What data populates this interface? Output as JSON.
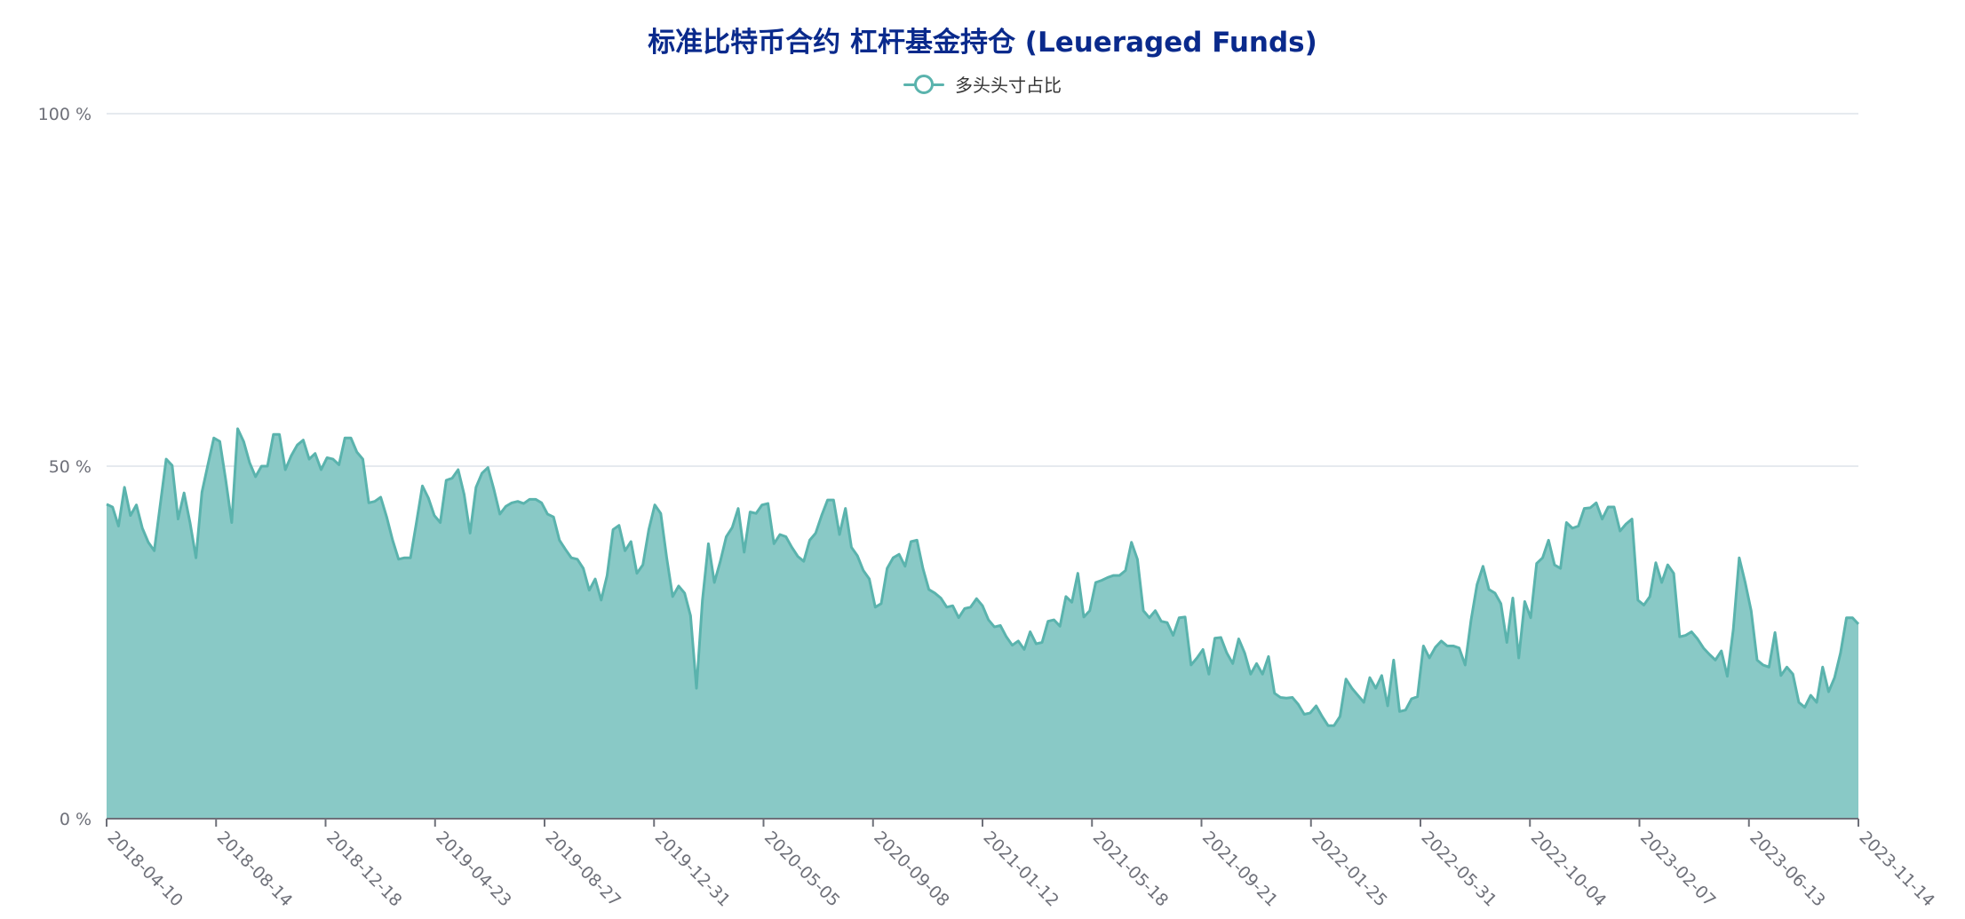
{
  "chart_data": {
    "type": "area",
    "title": "标准比特币合约 杠杆基金持仓 (Leueraged Funds)",
    "xlabel": "",
    "ylabel": "",
    "ylim": [
      0,
      100
    ],
    "y_tick_labels": [
      "0 %",
      "50 %",
      "100 %"
    ],
    "x_tick_labels": [
      "2018-04-10",
      "2018-08-14",
      "2018-12-18",
      "2019-04-23",
      "2019-08-27",
      "2019-12-31",
      "2020-05-05",
      "2020-09-08",
      "2021-01-12",
      "2021-05-18",
      "2021-09-21",
      "2022-01-25",
      "2022-05-31",
      "2022-10-04",
      "2023-02-07",
      "2023-06-13",
      "2023-11-14"
    ],
    "grid": true,
    "legend_position": "top-center",
    "colors": {
      "series": "#5ab3ad",
      "area": "#89c9c6",
      "title": "#0a2a8c"
    },
    "series": [
      {
        "name": "多头头寸占比",
        "values": [
          44.6,
          44.2,
          41.5,
          47,
          43,
          44.5,
          41.2,
          39.2,
          38,
          44.5,
          51,
          50.1,
          42.5,
          46.2,
          42,
          37,
          46.3,
          50.2,
          54,
          53.5,
          48,
          42,
          55.3,
          53.5,
          50.5,
          48.5,
          50,
          50,
          54.5,
          54.5,
          49.5,
          51.5,
          53,
          53.7,
          51,
          51.8,
          49.5,
          51.2,
          51,
          50.2,
          54,
          54,
          52,
          51,
          44.8,
          45,
          45.6,
          42.8,
          39.5,
          36.8,
          37,
          37,
          42,
          47.2,
          45.5,
          43,
          42,
          48,
          48.3,
          49.5,
          46,
          40.5,
          47,
          49,
          49.8,
          46.7,
          43.2,
          44.3,
          44.8,
          45,
          44.7,
          45.3,
          45.3,
          44.8,
          43.2,
          42.8,
          39.5,
          38.2,
          37,
          36.8,
          35.5,
          32.4,
          34,
          31,
          34.5,
          41,
          41.6,
          38,
          39.3,
          34.8,
          36,
          41,
          44.5,
          43.3,
          37,
          31.5,
          33,
          32,
          28.8,
          18.5,
          31,
          39,
          33.5,
          36.5,
          40,
          41.3,
          44,
          37.8,
          43.5,
          43.3,
          44.5,
          44.7,
          39,
          40.3,
          40,
          38.5,
          37.2,
          36.5,
          39.5,
          40.5,
          43,
          45.2,
          45.2,
          40.3,
          44,
          38.5,
          37.3,
          35.2,
          34,
          30,
          30.5,
          35.5,
          37,
          37.5,
          35.8,
          39.3,
          39.5,
          35.5,
          32.5,
          32,
          31.3,
          30,
          30.2,
          28.5,
          29.8,
          30,
          31.2,
          30.2,
          28.2,
          27.2,
          27.4,
          25.8,
          24.6,
          25.2,
          24,
          26.5,
          24.8,
          25,
          28,
          28.2,
          27.3,
          31.5,
          30.7,
          34.8,
          28.6,
          29.5,
          33.5,
          33.8,
          34.2,
          34.5,
          34.5,
          35.2,
          39.2,
          36.8,
          29.5,
          28.5,
          29.5,
          28,
          27.8,
          26,
          28.5,
          28.6,
          21.8,
          22.8,
          24,
          20.5,
          25.6,
          25.7,
          23.5,
          22,
          25.5,
          23.5,
          20.5,
          22,
          20.5,
          23,
          17.8,
          17.2,
          17.1,
          17.2,
          16.2,
          14.8,
          15,
          16,
          14.5,
          13.2,
          13.2,
          14.5,
          19.8,
          18.5,
          17.5,
          16.5,
          20,
          18.5,
          20.3,
          16,
          22.5,
          15.2,
          15.4,
          17,
          17.3,
          24.5,
          22.8,
          24.3,
          25.2,
          24.5,
          24.5,
          24.2,
          21.8,
          28.2,
          33.2,
          35.8,
          32.5,
          32,
          30.5,
          25,
          31.3,
          22.8,
          30.8,
          28.5,
          36.2,
          37,
          39.5,
          36,
          35.5,
          42,
          41.2,
          41.5,
          44,
          44.1,
          44.8,
          42.5,
          44.2,
          44.2,
          40.8,
          41.8,
          42.5,
          31,
          30.3,
          31.5,
          36.3,
          33.5,
          36,
          34.8,
          25.8,
          26,
          26.5,
          25.5,
          24.2,
          23.3,
          22.5,
          23.8,
          20.2,
          26.8,
          37,
          33.5,
          29.5,
          22.5,
          21.8,
          21.5,
          26.4,
          20.3,
          21.5,
          20.5,
          16.5,
          15.8,
          17.5,
          16.5,
          21.5,
          18,
          20,
          23.5,
          28.5,
          28.5,
          27.6
        ]
      }
    ]
  }
}
